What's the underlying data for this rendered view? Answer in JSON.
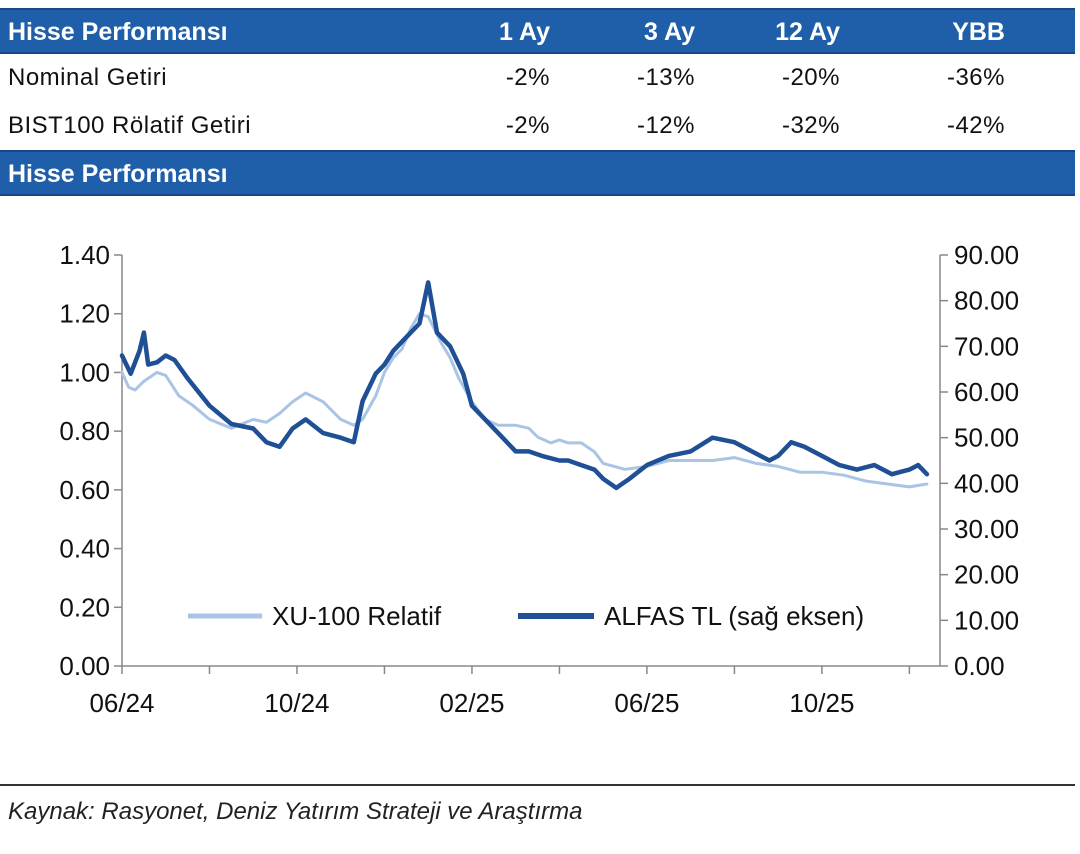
{
  "table": {
    "header": {
      "title": "Hisse Performansı",
      "cols": [
        "1 Ay",
        "3 Ay",
        "12 Ay",
        "YBB"
      ]
    },
    "rows": [
      {
        "label": "Nominal Getiri",
        "values": [
          "-2%",
          "-13%",
          "-20%",
          "-36%"
        ]
      },
      {
        "label": "BIST100 Rölatif Getiri",
        "values": [
          "-2%",
          "-12%",
          "-32%",
          "-42%"
        ]
      }
    ]
  },
  "chart_section_title": "Hisse Performansı",
  "colors": {
    "header_bg": "#1f5ea8",
    "series_light": "#a9c4e4",
    "series_dark": "#1f4f94"
  },
  "chart_data": {
    "type": "line",
    "title": "Hisse Performansı",
    "x_ticks": [
      "06/24",
      "10/24",
      "02/25",
      "06/25",
      "10/25"
    ],
    "y_left": {
      "min": 0,
      "max": 1.4,
      "ticks": [
        "0.00",
        "0.20",
        "0.40",
        "0.60",
        "0.80",
        "1.00",
        "1.20",
        "1.40"
      ]
    },
    "y_right": {
      "min": 0,
      "max": 90,
      "ticks": [
        "0.00",
        "10.00",
        "20.00",
        "30.00",
        "40.00",
        "50.00",
        "60.00",
        "70.00",
        "80.00",
        "90.00"
      ]
    },
    "series": [
      {
        "name": "XU-100 Relatif",
        "axis": "left",
        "color": "#a9c4e4",
        "x": [
          0,
          0.15,
          0.3,
          0.5,
          0.8,
          1.0,
          1.3,
          1.6,
          2.0,
          2.5,
          3.0,
          3.3,
          3.6,
          3.9,
          4.2,
          4.6,
          5.0,
          5.3,
          5.5,
          5.8,
          6.0,
          6.2,
          6.4,
          6.6,
          6.8,
          7.0,
          7.3,
          7.5,
          7.7,
          8.0,
          8.3,
          8.6,
          9.0,
          9.3,
          9.5,
          9.8,
          10.0,
          10.2,
          10.5,
          10.8,
          11.0,
          11.5,
          12.0,
          12.5,
          13.0,
          13.5,
          14.0,
          14.5,
          15.0,
          15.5,
          16.0,
          16.5,
          17.0,
          17.5,
          18.0,
          18.4
        ],
        "values": [
          1.0,
          0.95,
          0.94,
          0.97,
          1.0,
          0.99,
          0.92,
          0.89,
          0.84,
          0.81,
          0.84,
          0.83,
          0.86,
          0.9,
          0.93,
          0.9,
          0.84,
          0.82,
          0.84,
          0.92,
          1.0,
          1.05,
          1.08,
          1.15,
          1.2,
          1.19,
          1.1,
          1.05,
          0.98,
          0.9,
          0.84,
          0.82,
          0.82,
          0.81,
          0.78,
          0.76,
          0.77,
          0.76,
          0.76,
          0.73,
          0.69,
          0.67,
          0.68,
          0.7,
          0.7,
          0.7,
          0.71,
          0.69,
          0.68,
          0.66,
          0.66,
          0.65,
          0.63,
          0.62,
          0.61,
          0.62
        ]
      },
      {
        "name": "ALFAS TL (sağ eksen)",
        "axis": "right",
        "color": "#1f4f94",
        "x": [
          0,
          0.2,
          0.4,
          0.5,
          0.6,
          0.8,
          1.0,
          1.2,
          1.5,
          2.0,
          2.5,
          3.0,
          3.3,
          3.6,
          3.9,
          4.2,
          4.6,
          5.0,
          5.3,
          5.5,
          5.8,
          6.0,
          6.2,
          6.5,
          6.8,
          7.0,
          7.2,
          7.5,
          7.8,
          8.0,
          8.3,
          8.6,
          9.0,
          9.3,
          9.6,
          10.0,
          10.2,
          10.5,
          10.8,
          11.0,
          11.3,
          11.6,
          12.0,
          12.5,
          13.0,
          13.5,
          14.0,
          14.4,
          14.8,
          15.0,
          15.3,
          15.6,
          16.0,
          16.4,
          16.8,
          17.2,
          17.6,
          18.0,
          18.2,
          18.4
        ],
        "values": [
          68.0,
          64.0,
          69.0,
          73.0,
          66.0,
          66.5,
          68.0,
          67.0,
          63.0,
          57.0,
          53.0,
          52.0,
          49.0,
          48.0,
          52.0,
          54.0,
          51.0,
          50.0,
          49.0,
          58.0,
          64.0,
          66.0,
          69.0,
          72.0,
          75.0,
          84.0,
          73.0,
          70.0,
          64.0,
          57.0,
          54.0,
          51.0,
          47.0,
          47.0,
          46.0,
          45.0,
          45.0,
          44.0,
          43.0,
          41.0,
          39.0,
          41.0,
          44.0,
          46.0,
          47.0,
          50.0,
          49.0,
          47.0,
          45.0,
          46.0,
          49.0,
          48.0,
          46.0,
          44.0,
          43.0,
          44.0,
          42.0,
          43.0,
          44.0,
          42.0
        ]
      }
    ],
    "legend": "inside-bottom"
  },
  "source": "Kaynak: Rasyonet, Deniz Yatırım Strateji ve Araştırma"
}
